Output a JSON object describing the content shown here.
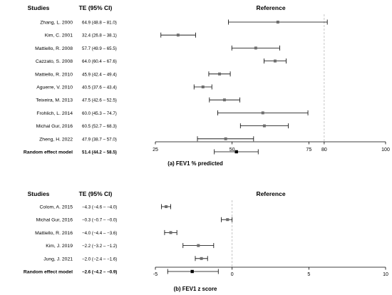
{
  "chart_data": [
    {
      "type": "forest",
      "caption": "(a) FEV1 % predicted",
      "headers": {
        "studies": "Studies",
        "te": "TE (95% CI)",
        "plot": "Reference"
      },
      "xlim": [
        25,
        100
      ],
      "ticks": [
        25,
        50,
        75,
        80,
        100
      ],
      "reference_line": 80,
      "studies": [
        {
          "name": "Zhang, L. 2000",
          "label": "64.9 (48.8 – 81.0)",
          "te": 64.9,
          "lo": 48.8,
          "hi": 81.0
        },
        {
          "name": "Kim, C. 2001",
          "label": "32.4 (26.8 – 38.1)",
          "te": 32.4,
          "lo": 26.8,
          "hi": 38.1
        },
        {
          "name": "Mattiello, R. 2008",
          "label": "57.7 (49.9 – 65.5)",
          "te": 57.7,
          "lo": 49.9,
          "hi": 65.5
        },
        {
          "name": "Cazzato, S. 2008",
          "label": "64.0 (60.4 – 67.6)",
          "te": 64.0,
          "lo": 60.4,
          "hi": 67.6
        },
        {
          "name": "Mattiello, R. 2010",
          "label": "45.9 (42.4 – 49.4)",
          "te": 45.9,
          "lo": 42.4,
          "hi": 49.4
        },
        {
          "name": "Aguerre, V. 2010",
          "label": "40.5 (37.6 – 43.4)",
          "te": 40.5,
          "lo": 37.6,
          "hi": 43.4
        },
        {
          "name": "Teixeira, M. 2013",
          "label": "47.5 (42.6 – 52.5)",
          "te": 47.5,
          "lo": 42.6,
          "hi": 52.5
        },
        {
          "name": "Frohlich, L. 2014",
          "label": "60.0 (45.3 – 74.7)",
          "te": 60.0,
          "lo": 45.3,
          "hi": 74.7
        },
        {
          "name": "Michal Gur, 2016",
          "label": "60.5 (52.7 – 68.3)",
          "te": 60.5,
          "lo": 52.7,
          "hi": 68.3
        },
        {
          "name": "Zheng, H. 2022",
          "label": "47.9 (38.7 – 57.0)",
          "te": 47.9,
          "lo": 38.7,
          "hi": 57.0
        }
      ],
      "pooled": {
        "name": "Random effect model",
        "label": "51.4 (44.2 – 58.5)",
        "te": 51.4,
        "lo": 44.2,
        "hi": 58.5
      }
    },
    {
      "type": "forest",
      "caption": "(b) FEV1 z score",
      "headers": {
        "studies": "Studies",
        "te": "TE (95% CI)",
        "plot": "Reference"
      },
      "xlim": [
        -5,
        10
      ],
      "ticks": [
        -5,
        0,
        5,
        10
      ],
      "reference_line": 0,
      "studies": [
        {
          "name": "Colom, A. 2015",
          "label": "−4.3 (−4.6 – −4.0)",
          "te": -4.3,
          "lo": -4.6,
          "hi": -4.0
        },
        {
          "name": "Michal Gur, 2016",
          "label": "−0.3 (−0.7 – −0.0)",
          "te": -0.3,
          "lo": -0.7,
          "hi": 0.0
        },
        {
          "name": "Mattiello, R. 2016",
          "label": "−4.0 (−4.4 – −3.6)",
          "te": -4.0,
          "lo": -4.4,
          "hi": -3.6
        },
        {
          "name": "Kim, J. 2019",
          "label": "−2.2 (−3.2 – −1.2)",
          "te": -2.2,
          "lo": -3.2,
          "hi": -1.2
        },
        {
          "name": "Jung, J. 2021",
          "label": "−2.0 (−2.4 – −1.6)",
          "te": -2.0,
          "lo": -2.4,
          "hi": -1.6
        }
      ],
      "pooled": {
        "name": "Random effect model",
        "label": "−2.6 (−4.2 – −0.9)",
        "te": -2.6,
        "lo": -4.2,
        "hi": -0.9
      }
    }
  ]
}
